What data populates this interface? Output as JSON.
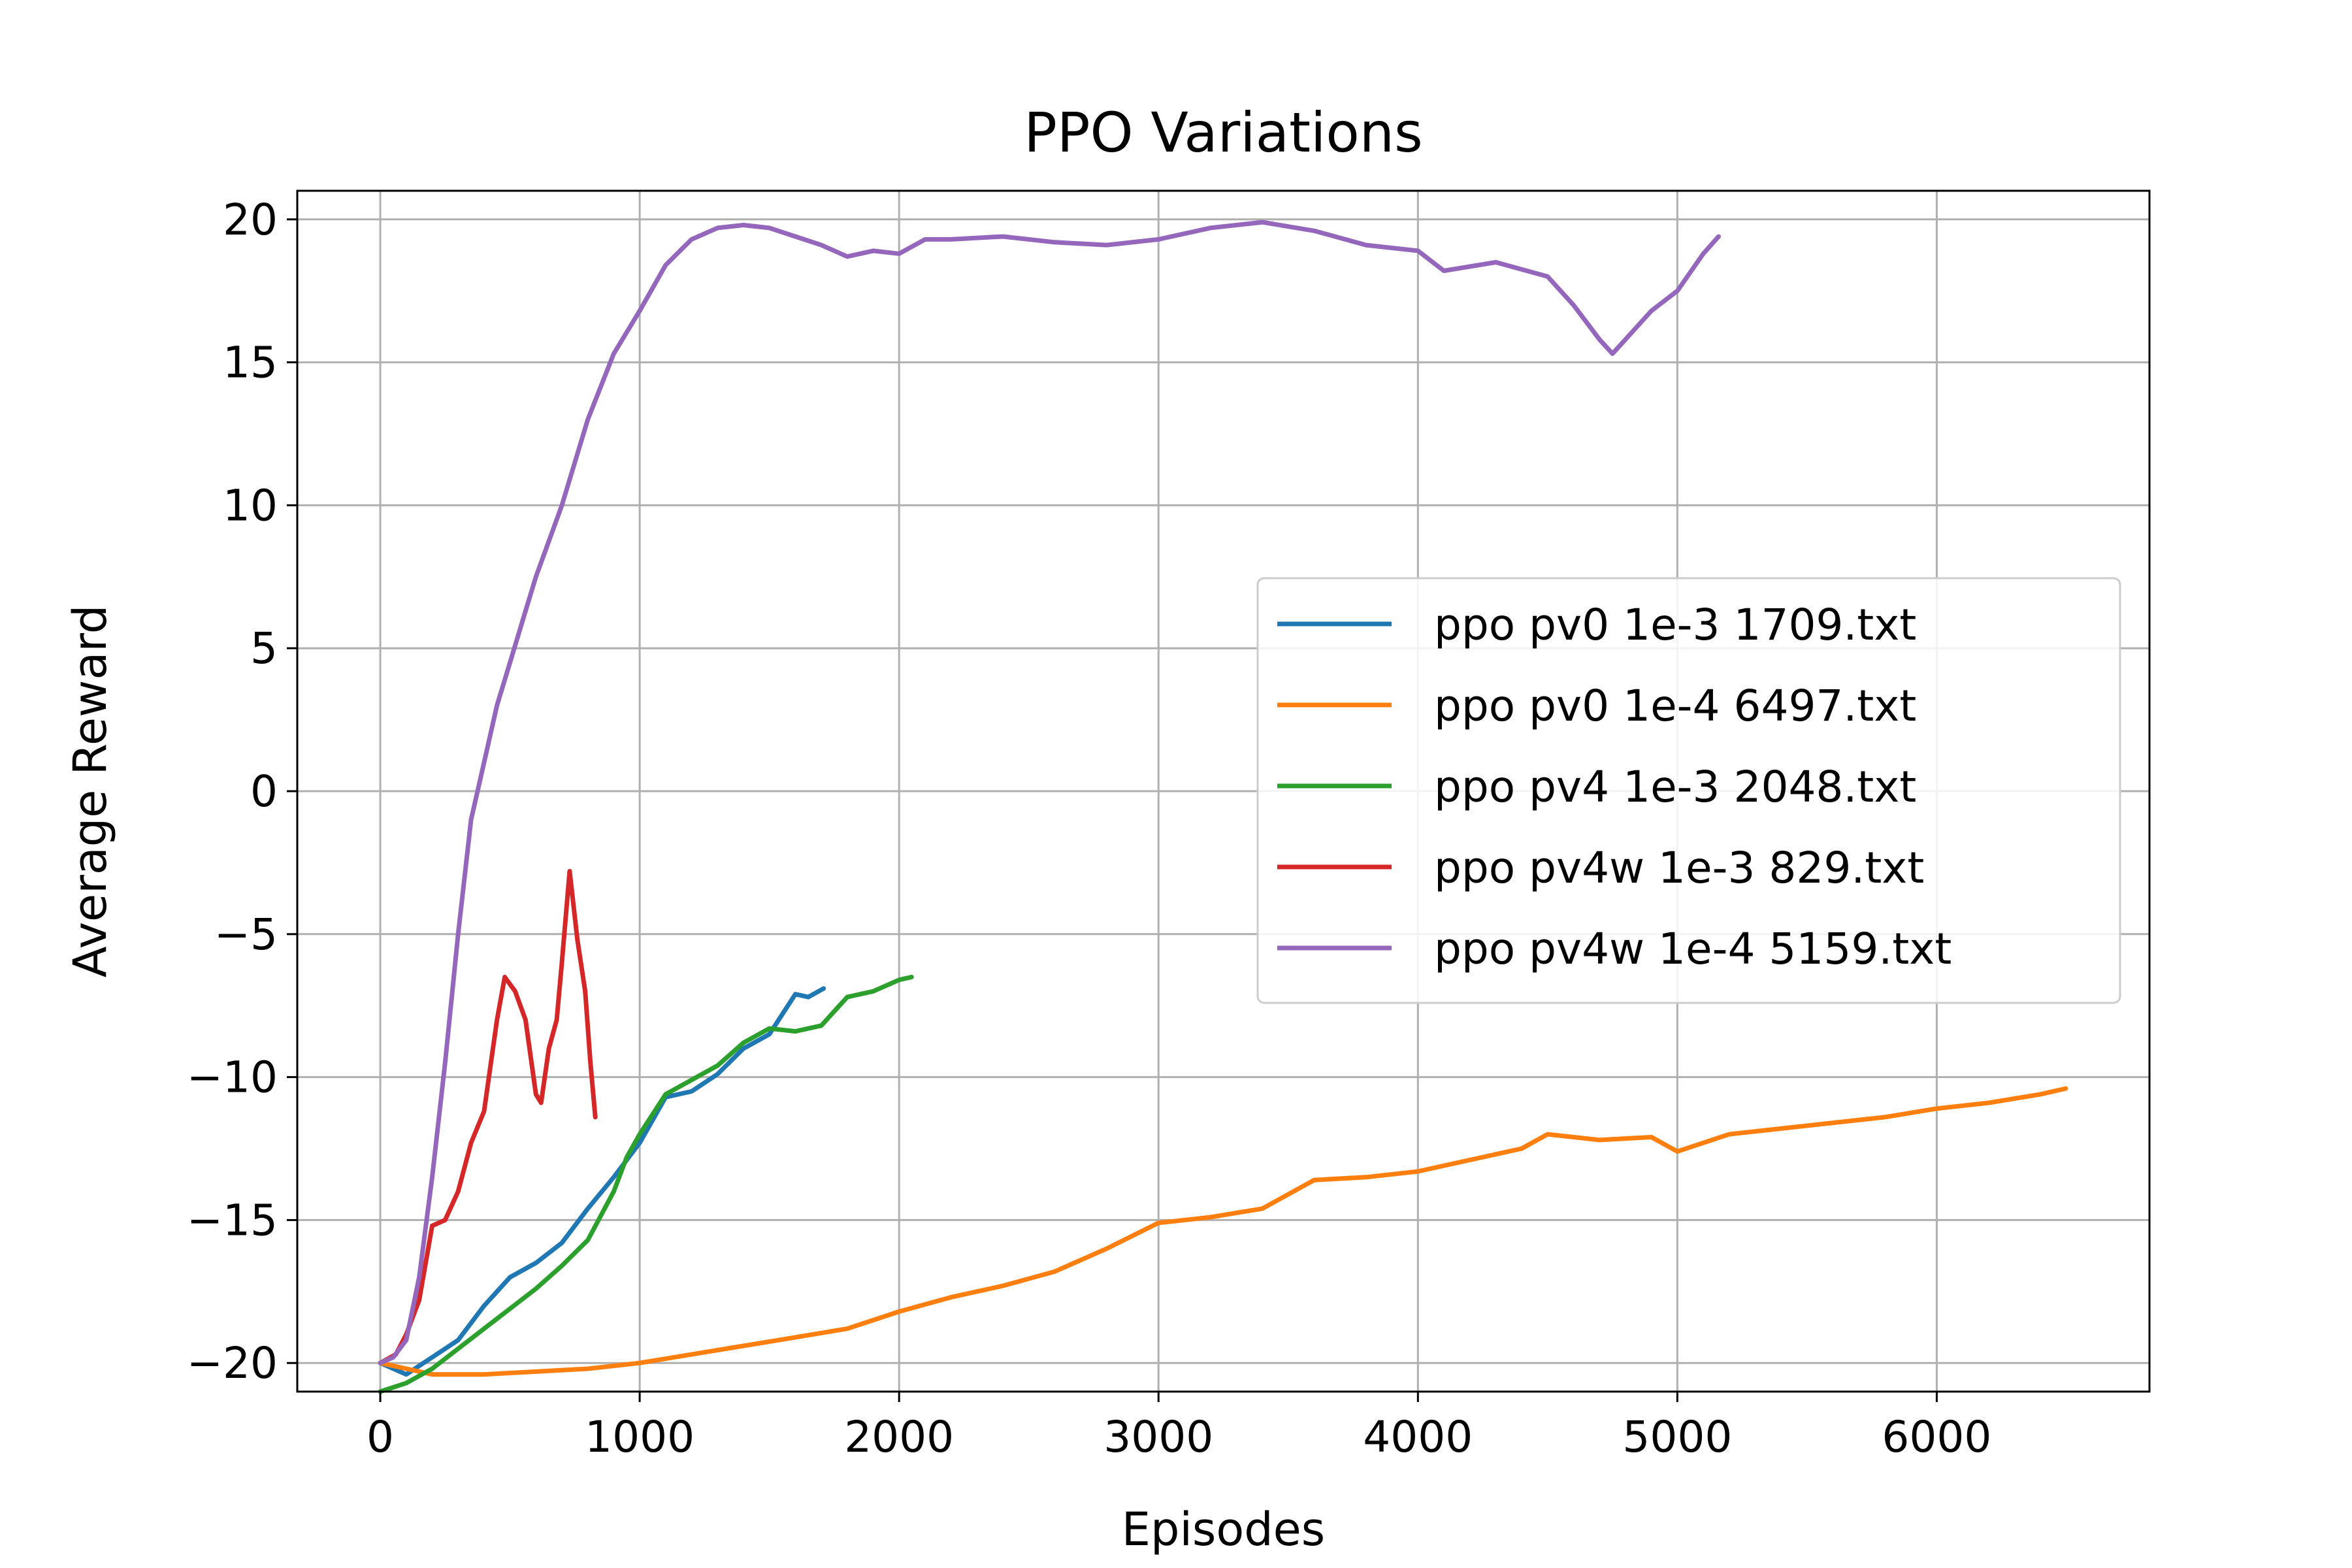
{
  "chart_data": {
    "type": "line",
    "title": "PPO Variations",
    "xlabel": "Episodes",
    "ylabel": "Average Reward",
    "xlim": [
      -320,
      6820
    ],
    "ylim": [
      -21,
      21
    ],
    "xticks": [
      0,
      1000,
      2000,
      3000,
      4000,
      5000,
      6000
    ],
    "yticks": [
      -20,
      -15,
      -10,
      -5,
      0,
      5,
      10,
      15,
      20
    ],
    "xtick_labels": [
      "0",
      "1000",
      "2000",
      "3000",
      "4000",
      "5000",
      "6000"
    ],
    "ytick_labels": [
      "−20",
      "−15",
      "−10",
      "−5",
      "0",
      "5",
      "10",
      "15",
      "20"
    ],
    "grid": true,
    "legend_position": "center-right",
    "series": [
      {
        "name": "ppo pv0 1e-3 1709.txt",
        "color": "#1f77b4",
        "points": [
          [
            0,
            -20
          ],
          [
            100,
            -20.4
          ],
          [
            200,
            -19.8
          ],
          [
            300,
            -19.2
          ],
          [
            400,
            -18.0
          ],
          [
            500,
            -17.0
          ],
          [
            600,
            -16.5
          ],
          [
            700,
            -15.8
          ],
          [
            800,
            -14.6
          ],
          [
            900,
            -13.5
          ],
          [
            1000,
            -12.3
          ],
          [
            1100,
            -10.7
          ],
          [
            1200,
            -10.5
          ],
          [
            1300,
            -9.9
          ],
          [
            1400,
            -9.0
          ],
          [
            1500,
            -8.5
          ],
          [
            1550,
            -7.8
          ],
          [
            1600,
            -7.1
          ],
          [
            1650,
            -7.2
          ],
          [
            1709,
            -6.9
          ]
        ]
      },
      {
        "name": "ppo pv0 1e-4 6497.txt",
        "color": "#ff7f0e",
        "points": [
          [
            0,
            -20
          ],
          [
            200,
            -20.4
          ],
          [
            400,
            -20.4
          ],
          [
            600,
            -20.3
          ],
          [
            800,
            -20.2
          ],
          [
            1000,
            -20.0
          ],
          [
            1200,
            -19.7
          ],
          [
            1400,
            -19.4
          ],
          [
            1600,
            -19.1
          ],
          [
            1800,
            -18.8
          ],
          [
            2000,
            -18.2
          ],
          [
            2200,
            -17.7
          ],
          [
            2400,
            -17.3
          ],
          [
            2600,
            -16.8
          ],
          [
            2800,
            -16.0
          ],
          [
            3000,
            -15.1
          ],
          [
            3200,
            -14.9
          ],
          [
            3400,
            -14.6
          ],
          [
            3600,
            -13.6
          ],
          [
            3800,
            -13.5
          ],
          [
            4000,
            -13.3
          ],
          [
            4200,
            -12.9
          ],
          [
            4400,
            -12.5
          ],
          [
            4500,
            -12.0
          ],
          [
            4700,
            -12.2
          ],
          [
            4900,
            -12.1
          ],
          [
            5000,
            -12.6
          ],
          [
            5200,
            -12.0
          ],
          [
            5400,
            -11.8
          ],
          [
            5600,
            -11.6
          ],
          [
            5800,
            -11.4
          ],
          [
            6000,
            -11.1
          ],
          [
            6200,
            -10.9
          ],
          [
            6400,
            -10.6
          ],
          [
            6497,
            -10.4
          ]
        ]
      },
      {
        "name": "ppo pv4 1e-3 2048.txt",
        "color": "#2ca02c",
        "points": [
          [
            0,
            -21
          ],
          [
            100,
            -20.7
          ],
          [
            200,
            -20.2
          ],
          [
            300,
            -19.5
          ],
          [
            400,
            -18.8
          ],
          [
            500,
            -18.1
          ],
          [
            600,
            -17.4
          ],
          [
            700,
            -16.6
          ],
          [
            800,
            -15.7
          ],
          [
            900,
            -14.0
          ],
          [
            950,
            -12.8
          ],
          [
            1000,
            -12.0
          ],
          [
            1100,
            -10.6
          ],
          [
            1200,
            -10.1
          ],
          [
            1300,
            -9.6
          ],
          [
            1400,
            -8.8
          ],
          [
            1500,
            -8.3
          ],
          [
            1600,
            -8.4
          ],
          [
            1700,
            -8.2
          ],
          [
            1800,
            -7.2
          ],
          [
            1900,
            -7.0
          ],
          [
            2000,
            -6.6
          ],
          [
            2048,
            -6.5
          ]
        ]
      },
      {
        "name": "ppo pv4w 1e-3 829.txt",
        "color": "#d62728",
        "points": [
          [
            0,
            -20
          ],
          [
            60,
            -19.7
          ],
          [
            100,
            -19.0
          ],
          [
            150,
            -17.8
          ],
          [
            200,
            -15.2
          ],
          [
            250,
            -15.0
          ],
          [
            300,
            -14.0
          ],
          [
            350,
            -12.3
          ],
          [
            400,
            -11.2
          ],
          [
            450,
            -8.0
          ],
          [
            480,
            -6.5
          ],
          [
            520,
            -7.0
          ],
          [
            560,
            -8.0
          ],
          [
            600,
            -10.6
          ],
          [
            620,
            -10.9
          ],
          [
            650,
            -9.0
          ],
          [
            680,
            -8.0
          ],
          [
            700,
            -6.0
          ],
          [
            730,
            -2.8
          ],
          [
            760,
            -5.2
          ],
          [
            790,
            -7.0
          ],
          [
            810,
            -9.5
          ],
          [
            829,
            -11.4
          ]
        ]
      },
      {
        "name": "ppo pv4w 1e-4 5159.txt",
        "color": "#9467bd",
        "points": [
          [
            0,
            -20
          ],
          [
            50,
            -19.8
          ],
          [
            100,
            -19.2
          ],
          [
            150,
            -17.0
          ],
          [
            200,
            -13.5
          ],
          [
            250,
            -9.5
          ],
          [
            300,
            -5.0
          ],
          [
            350,
            -1.0
          ],
          [
            400,
            1.0
          ],
          [
            450,
            3.0
          ],
          [
            500,
            4.5
          ],
          [
            550,
            6.0
          ],
          [
            600,
            7.5
          ],
          [
            700,
            10.0
          ],
          [
            800,
            13.0
          ],
          [
            900,
            15.3
          ],
          [
            1000,
            16.8
          ],
          [
            1100,
            18.4
          ],
          [
            1200,
            19.3
          ],
          [
            1300,
            19.7
          ],
          [
            1400,
            19.8
          ],
          [
            1500,
            19.7
          ],
          [
            1600,
            19.4
          ],
          [
            1700,
            19.1
          ],
          [
            1800,
            18.7
          ],
          [
            1900,
            18.9
          ],
          [
            2000,
            18.8
          ],
          [
            2100,
            19.3
          ],
          [
            2200,
            19.3
          ],
          [
            2400,
            19.4
          ],
          [
            2600,
            19.2
          ],
          [
            2800,
            19.1
          ],
          [
            3000,
            19.3
          ],
          [
            3200,
            19.7
          ],
          [
            3400,
            19.9
          ],
          [
            3600,
            19.6
          ],
          [
            3800,
            19.1
          ],
          [
            4000,
            18.9
          ],
          [
            4100,
            18.2
          ],
          [
            4300,
            18.5
          ],
          [
            4500,
            18.0
          ],
          [
            4600,
            17.0
          ],
          [
            4700,
            15.8
          ],
          [
            4750,
            15.3
          ],
          [
            4800,
            15.8
          ],
          [
            4900,
            16.8
          ],
          [
            5000,
            17.5
          ],
          [
            5100,
            18.8
          ],
          [
            5159,
            19.4
          ]
        ]
      }
    ]
  }
}
